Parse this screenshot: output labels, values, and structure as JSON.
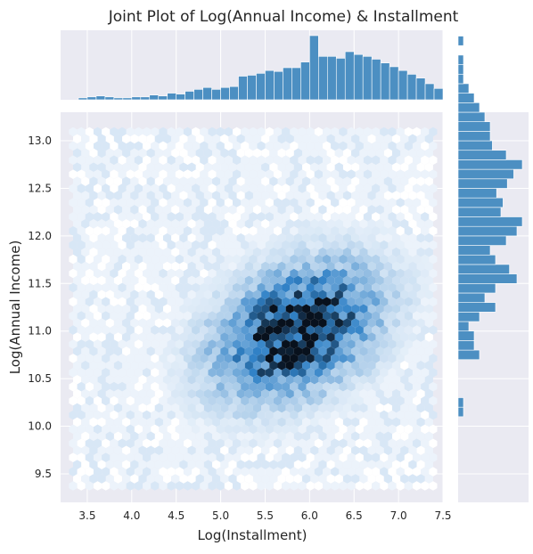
{
  "chart_data": {
    "type": "hexbin-jointplot",
    "title": "Joint Plot of Log(Annual Income) & Installment",
    "xlabel": "Log(Installment)",
    "ylabel": "Log(Annual Income)",
    "xlim": [
      3.2,
      7.5
    ],
    "ylim": [
      9.2,
      13.3
    ],
    "xticks": [
      "3.5",
      "4.0",
      "4.5",
      "5.0",
      "5.5",
      "6.0",
      "6.5",
      "7.0",
      "7.5"
    ],
    "yticks": [
      "9.5",
      "10.0",
      "10.5",
      "11.0",
      "11.5",
      "12.0",
      "12.5",
      "13.0"
    ],
    "grid": true,
    "colors": {
      "background": "#eaeaf2",
      "grid": "#ffffff",
      "bar": "#4c8fc2",
      "hex_low": "#f2f7fd",
      "hex_high": "#08111d"
    },
    "hexbin_density_description": "bivariate density peaking near x 5.8, y 11.0",
    "hexbin_center": {
      "x": 5.85,
      "y": 11.0
    },
    "hexbin_spread": {
      "x": 0.55,
      "y": 0.42
    },
    "marginal_x": {
      "bin_start": 3.4,
      "bin_width": 0.1,
      "counts": [
        2,
        3,
        4,
        3,
        2,
        2,
        3,
        3,
        5,
        4,
        7,
        6,
        9,
        11,
        13,
        11,
        13,
        14,
        25,
        26,
        28,
        31,
        30,
        34,
        34,
        40,
        68,
        46,
        46,
        44,
        51,
        48,
        46,
        43,
        39,
        35,
        31,
        27,
        23,
        17,
        12
      ]
    },
    "marginal_y": {
      "bin_start": 9.3,
      "bin_width": 0.1,
      "counts": [
        0,
        0,
        0,
        0,
        0,
        0,
        0,
        0,
        5,
        5,
        0,
        0,
        0,
        0,
        20,
        15,
        15,
        10,
        20,
        35,
        25,
        35,
        55,
        48,
        35,
        30,
        45,
        55,
        60,
        40,
        42,
        36,
        46,
        52,
        60,
        45,
        32,
        30,
        30,
        25,
        20,
        15,
        10,
        5,
        5,
        5,
        0,
        5,
        0,
        0,
        0
      ]
    }
  }
}
